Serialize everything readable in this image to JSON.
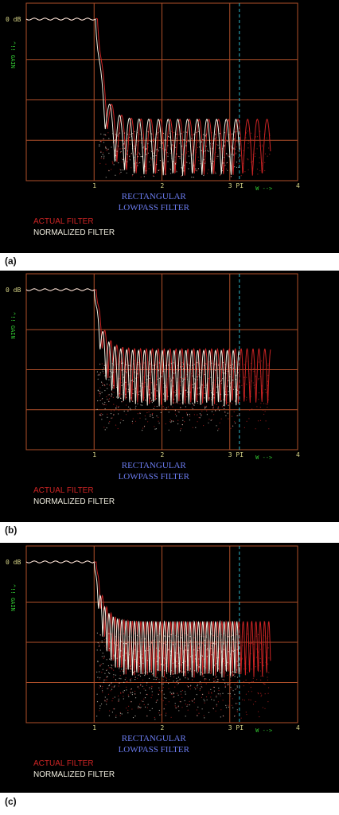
{
  "figure": {
    "panels": [
      {
        "id": "a",
        "caption": "(a)",
        "top": 0,
        "height": 318,
        "captionTop": 321,
        "plot": {
          "left": 33,
          "right": 374,
          "top": 4,
          "bottom": 227
        },
        "passDb": 0.12,
        "actualRippleDb": 0.62,
        "normRippleDb": 0.62,
        "actualStart": 1.02,
        "normStart": 1.02,
        "stopEnd": 3.6
      },
      {
        "id": "b",
        "caption": "(b)",
        "top": 340,
        "height": 316,
        "captionTop": 659,
        "plot": {
          "left": 33,
          "right": 374,
          "top": 4,
          "bottom": 225
        },
        "passDb": 0.12,
        "actualRippleDb": 0.37,
        "normRippleDb": 0.38,
        "actualStart": 1.0,
        "normStart": 1.0,
        "stopEnd": 3.6
      },
      {
        "id": "c",
        "caption": "(c)",
        "top": 682,
        "height": 314,
        "captionTop": 1000,
        "plot": {
          "left": 33,
          "right": 374,
          "top": 4,
          "bottom": 226
        },
        "passDb": 0.12,
        "actualRippleDb": 0.37,
        "normRippleDb": 0.37,
        "actualStart": 1.0,
        "normStart": 1.0,
        "stopEnd": 3.6
      }
    ]
  },
  "chart_data": {
    "type": "line",
    "ylabel_top": "0 dB",
    "ylabel": "^!! GAIN",
    "xticks": [
      "1",
      "2",
      "3 PI",
      "4"
    ],
    "xtick_values": [
      1,
      2,
      3,
      4
    ],
    "xlabel": "W -->",
    "pi_marker": 3.14159,
    "xlim": [
      0,
      4
    ],
    "ylim_dB": [
      -1,
      0
    ],
    "title_line1": "RECTANGULAR",
    "title_line2": "LOWPASS FILTER",
    "series": [
      {
        "name": "ACTUAL FILTER",
        "color": "#cc2424"
      },
      {
        "name": "NORMALIZED FILTER",
        "color": "#f1eee0"
      }
    ]
  }
}
